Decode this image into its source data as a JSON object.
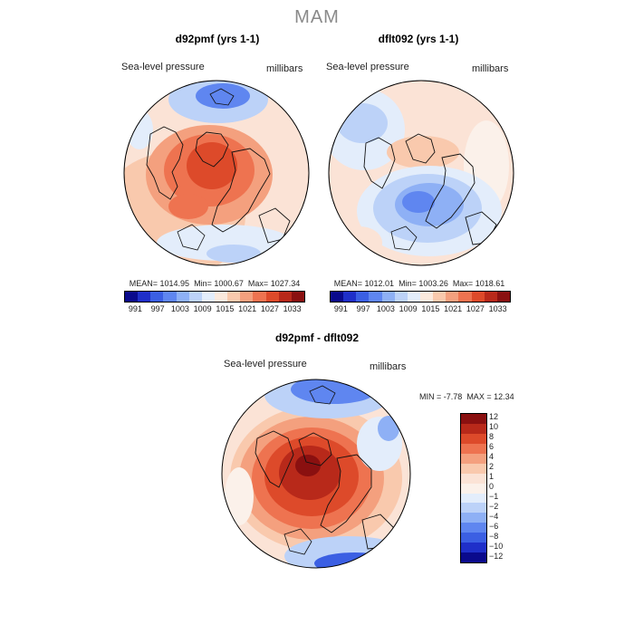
{
  "season": "MAM",
  "panels": {
    "left": {
      "title": "d92pmf (yrs 1-1)",
      "variable": "Sea-level pressure",
      "units": "millibars",
      "mean_label": "MEAN=",
      "mean": "1014.95",
      "min_label": "Min=",
      "min": "1000.67",
      "max_label": "Max=",
      "max": "1027.34"
    },
    "right": {
      "title": "dflt092 (yrs 1-1)",
      "variable": "Sea-level pressure",
      "units": "millibars",
      "mean_label": "MEAN=",
      "mean": "1012.01",
      "min_label": "Min=",
      "min": "1003.26",
      "max_label": "Max=",
      "max": "1018.61"
    },
    "diff": {
      "title": "d92pmf - dflt092",
      "variable": "Sea-level pressure",
      "units": "millibars",
      "min_label": "MIN =",
      "min": "-7.78",
      "max_label": "MAX =",
      "max": "12.34"
    }
  },
  "colorbar_abs": {
    "ticks": [
      "991",
      "997",
      "1003",
      "1009",
      "1015",
      "1021",
      "1027",
      "1033"
    ],
    "colors": [
      "#0a0a8c",
      "#1f2fc9",
      "#3b5fe3",
      "#5f86f0",
      "#8eb0f5",
      "#bcd2f8",
      "#e3edfb",
      "#fbe9dd",
      "#f9c9ad",
      "#f4a07e",
      "#ee7350",
      "#dd4a2a",
      "#b8291a",
      "#8a1010"
    ]
  },
  "colorbar_diff": {
    "ticks": [
      "12",
      "10",
      "8",
      "6",
      "4",
      "2",
      "1",
      "0",
      "−1",
      "−2",
      "−4",
      "−6",
      "−8",
      "−10",
      "−12"
    ],
    "colors": [
      "#8a1010",
      "#b8291a",
      "#dd4a2a",
      "#ee7350",
      "#f4a07e",
      "#f9c9ad",
      "#fbe3d6",
      "#fbf1ea",
      "#e3edfb",
      "#bcd2f8",
      "#8eb0f5",
      "#5f86f0",
      "#3b5fe3",
      "#1f2fc9",
      "#0a0a8c"
    ]
  }
}
